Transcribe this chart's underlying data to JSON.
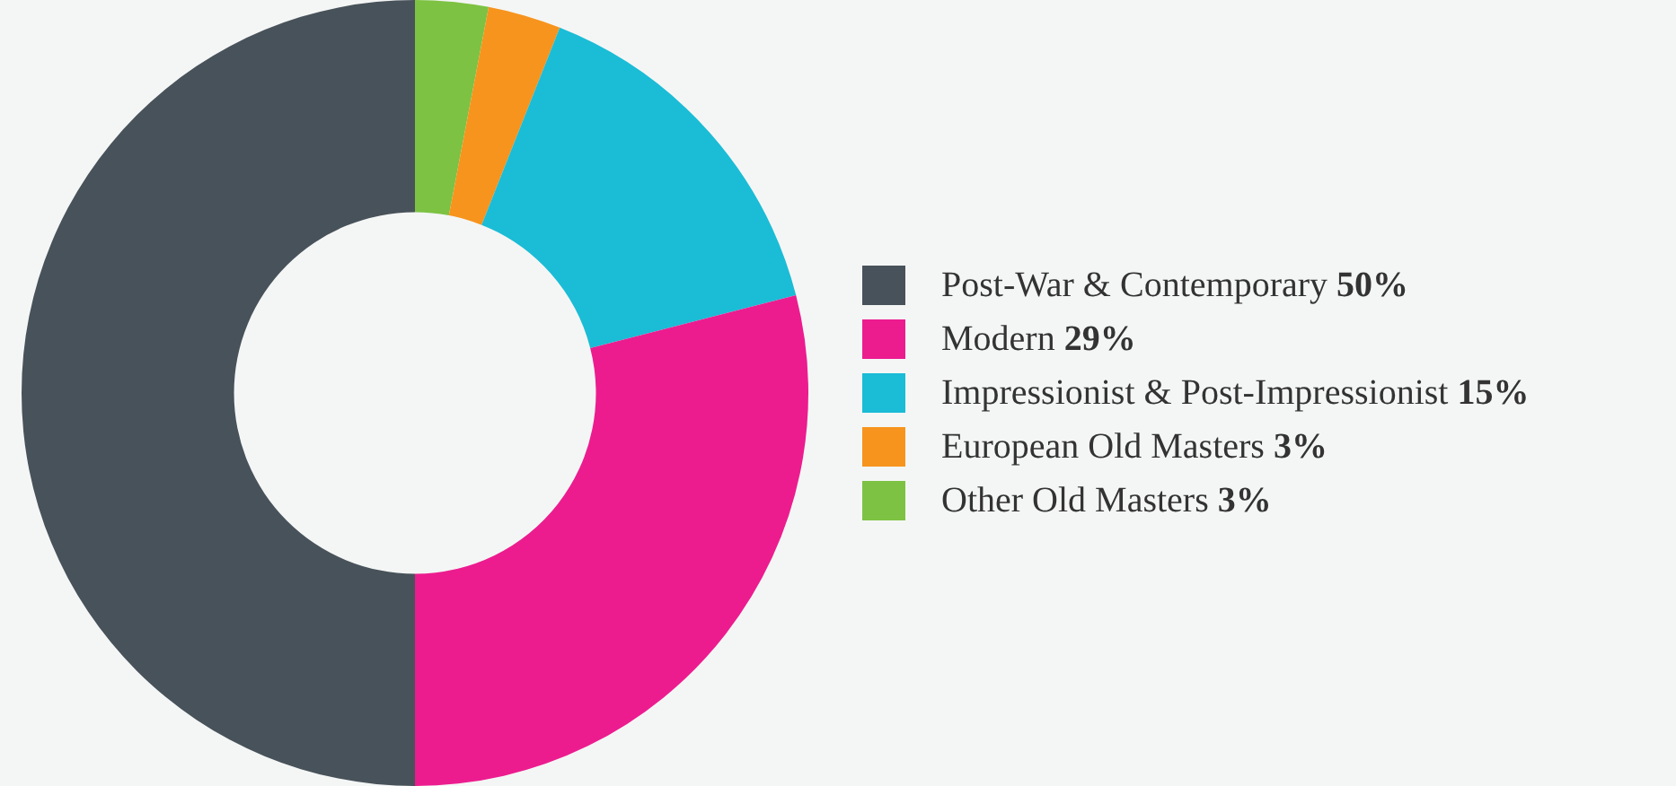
{
  "chart_data": {
    "type": "donut",
    "categories": [
      "Post-War & Contemporary",
      "Modern",
      "Impressionist & Post-Impressionist",
      "European Old Masters",
      "Other Old Masters"
    ],
    "values": [
      50,
      29,
      15,
      3,
      3
    ],
    "value_labels": [
      "50%",
      "29%",
      "15%",
      "3%",
      "3%"
    ],
    "colors": [
      "#48525a",
      "#ec1c8f",
      "#1bbcd6",
      "#f7941d",
      "#7dc242"
    ],
    "legend": "right"
  }
}
